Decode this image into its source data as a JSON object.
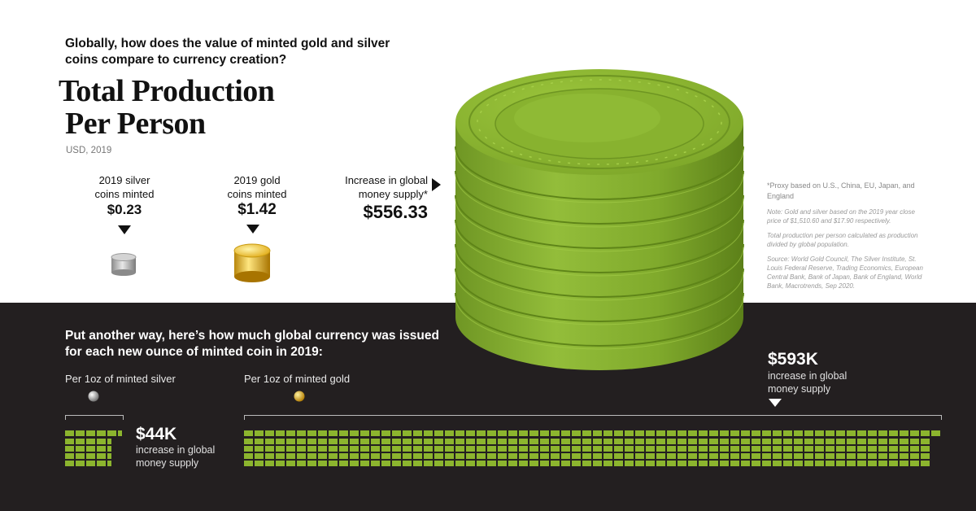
{
  "header": {
    "question": "Globally, how does the value of minted gold and silver coins compare to currency creation?",
    "title_line1": "Total Production",
    "title_line2": "Per Person",
    "units": "USD, 2019"
  },
  "top_values": {
    "silver": {
      "label_line1": "2019 silver",
      "label_line2": "coins minted",
      "value": "$0.23"
    },
    "gold": {
      "label_line1": "2019 gold",
      "label_line2": "coins minted",
      "value": "$1.42"
    },
    "money": {
      "label_line1": "Increase in global",
      "label_line2": "money supply*",
      "value": "$556.33"
    }
  },
  "notes": {
    "proxy": "*Proxy based on U.S., China, EU, Japan, and England",
    "note1": "Note: Gold and silver based on the 2019 year close price of $1,510.60 and $17.90 respectively.",
    "note2": "Total production per person calculated as production divided by global population.",
    "source": "Source: World Gold Council, The Silver Institute, St. Louis Federal Reserve, Trading Economics, European Central Bank, Bank of Japan, Bank of England, World Bank, Macrotrends, Sep 2020."
  },
  "bottom": {
    "heading": "Put another way, here’s how much global currency was issued for each new ounce of minted coin in 2019:",
    "silver_label": "Per 1oz of minted silver",
    "silver_value": "$44K",
    "silver_desc_line1": "increase in global",
    "silver_desc_line2": "money supply",
    "gold_label": "Per 1oz of minted gold",
    "gold_value": "$593K",
    "gold_desc_line1": "increase in global",
    "gold_desc_line2": "money supply"
  },
  "colors": {
    "accent_green": "#8cb52e",
    "coin_gold": "#e6b41e",
    "coin_silver": "#b0b0b0",
    "dark_band": "#231f20"
  },
  "icons": [
    "silver-coin-icon",
    "gold-coin-icon",
    "money-stack-icon",
    "silver-ball-icon",
    "gold-ball-icon"
  ]
}
